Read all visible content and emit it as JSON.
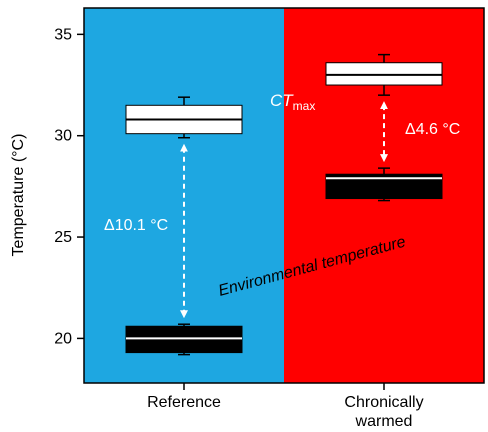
{
  "chart_data": {
    "type": "box",
    "ylabel": "Temperature (°C)",
    "ylim": [
      17.8,
      36.3
    ],
    "yticks": [
      20,
      25,
      30,
      35
    ],
    "categories": [
      "Reference",
      "Chronically\nwarmed"
    ],
    "background_colors": [
      "#1ea7e1",
      "#ff0000"
    ],
    "series": [
      {
        "name": "CTmax",
        "box_color": "#ffffff",
        "boxes": [
          {
            "category": "Reference",
            "whisker_low": 29.9,
            "q1": 30.1,
            "median": 30.8,
            "q3": 31.5,
            "whisker_high": 31.9
          },
          {
            "category": "Chronically\nwarmed",
            "whisker_low": 32.0,
            "q1": 32.5,
            "median": 33.0,
            "q3": 33.6,
            "whisker_high": 34.0
          }
        ]
      },
      {
        "name": "Environmental temperature",
        "box_color": "#000000",
        "boxes": [
          {
            "category": "Reference",
            "whisker_low": 19.2,
            "q1": 19.3,
            "median": 20.0,
            "q3": 20.6,
            "whisker_high": 20.7
          },
          {
            "category": "Chronically\nwarmed",
            "whisker_low": 26.8,
            "q1": 26.9,
            "median": 27.9,
            "q3": 28.1,
            "whisker_high": 28.4
          }
        ]
      }
    ],
    "annotations": {
      "ref_delta": "Δ10.1 °C",
      "warm_delta": "Δ4.6 °C",
      "ctmax_main": "CT",
      "ctmax_sub": "max",
      "env_label": "Environmental temperature"
    }
  }
}
